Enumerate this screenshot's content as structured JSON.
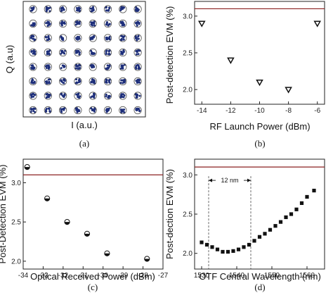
{
  "chart_data": [
    {
      "id": "a",
      "type": "scatter",
      "caption": "(a)",
      "xlabel": "I (a.u.)",
      "ylabel": "Q (a.u)",
      "constellation": {
        "rows": 8,
        "cols": 8
      },
      "colors": {
        "symbol": "#1e2f7a",
        "ring": "#555555"
      }
    },
    {
      "id": "b",
      "type": "scatter",
      "caption": "(b)",
      "xlabel": "RF Launch Power (dBm)",
      "ylabel": "Post-detection EVM (%)",
      "xlim": [
        -14.5,
        -5.5
      ],
      "ylim": [
        1.8,
        3.2
      ],
      "xticks": [
        -14,
        -12,
        -10,
        -8,
        -6
      ],
      "yticks": [
        2.0,
        2.5,
        3.0
      ],
      "x": [
        -14,
        -12,
        -10,
        -8,
        -6
      ],
      "y": [
        2.9,
        2.4,
        2.1,
        2.0,
        2.9
      ],
      "threshold": 3.1,
      "marker": "triangle-down",
      "colors": {
        "threshold": "#8b2020"
      }
    },
    {
      "id": "c",
      "type": "scatter",
      "caption": "(c)",
      "xlabel": "Optical Received Power (dBm)",
      "ylabel": "Post-Detection EVM (%)",
      "xlim": [
        -34,
        -27
      ],
      "ylim": [
        1.9,
        3.3
      ],
      "xticks": [
        -34,
        -33,
        -32,
        -31,
        -30,
        -29,
        -28,
        -27
      ],
      "yticks": [
        2.0,
        2.5,
        3.0
      ],
      "x": [
        -33.8,
        -32.8,
        -31.8,
        -30.8,
        -29.8,
        -27.8
      ],
      "y": [
        3.2,
        2.8,
        2.5,
        2.35,
        2.1,
        2.03
      ],
      "threshold": 3.1,
      "marker": "half-filled-circle",
      "colors": {
        "threshold": "#8b2020"
      }
    },
    {
      "id": "d",
      "type": "scatter",
      "caption": "(d)",
      "xlabel": "OTF Central Wavelength (nm)",
      "ylabel": "Post-dection EVM (%)",
      "xlim": [
        1528,
        1565
      ],
      "ylim": [
        1.8,
        3.2
      ],
      "xticks": [
        1530,
        1540,
        1550,
        1560
      ],
      "yticks": [
        2.0,
        2.5,
        3.0
      ],
      "x": [
        1530,
        1531.5,
        1533,
        1534.5,
        1536,
        1537.5,
        1539,
        1540.5,
        1542,
        1543.5,
        1545,
        1546.5,
        1548,
        1549.5,
        1551,
        1552.5,
        1554,
        1555.5,
        1557,
        1558.5,
        1560,
        1562
      ],
      "y": [
        2.14,
        2.11,
        2.08,
        2.05,
        2.02,
        2.02,
        2.03,
        2.05,
        2.08,
        2.11,
        2.16,
        2.21,
        2.25,
        2.3,
        2.35,
        2.4,
        2.46,
        2.5,
        2.56,
        2.64,
        2.72,
        2.8
      ],
      "threshold": 3.1,
      "marker": "square",
      "annotation": {
        "text": "12 nm",
        "x_start": 1532,
        "x_end": 1544,
        "y": 2.93
      },
      "colors": {
        "threshold": "#8b2020"
      }
    }
  ]
}
